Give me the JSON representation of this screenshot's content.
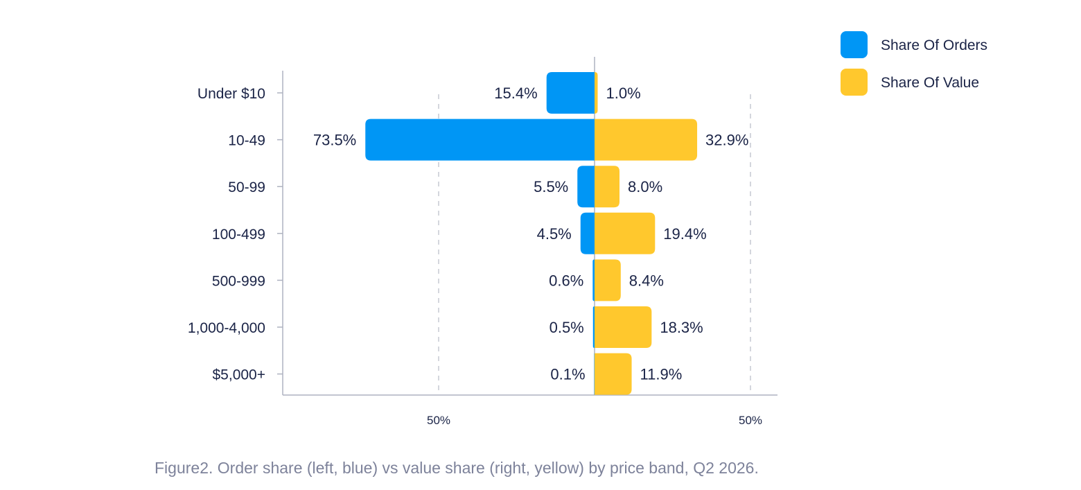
{
  "chart_data": {
    "type": "bar",
    "orientation": "horizontal-diverging",
    "categories": [
      "Under $10",
      "10-49",
      "50-99",
      "100-499",
      "500-999",
      "1,000-4,000",
      "$5,000+"
    ],
    "series": [
      {
        "name": "Share Of Orders",
        "side": "left",
        "color": "#0096f5",
        "values": [
          15.4,
          73.5,
          5.5,
          4.5,
          0.6,
          0.5,
          0.1
        ],
        "labels": [
          "15.4%",
          "73.5%",
          "5.5%",
          "4.5%",
          "0.6%",
          "0.5%",
          "0.1%"
        ]
      },
      {
        "name": "Share Of Value",
        "side": "right",
        "color": "#ffc82d",
        "values": [
          1.0,
          32.9,
          8.0,
          19.4,
          8.4,
          18.3,
          11.9
        ],
        "labels": [
          "1.0%",
          "32.9%",
          "8.0%",
          "19.4%",
          "8.4%",
          "18.3%",
          "11.9%"
        ]
      }
    ],
    "xticks": [
      "50%",
      "50%"
    ],
    "xtick_values": [
      -50,
      50
    ],
    "xlim": [
      -50,
      50
    ],
    "grid": "dashed vertical at ticks",
    "legend_position": "top-right"
  },
  "caption": "Figure2. Order share (left, blue) vs value share (right, yellow) by price band, Q2 2026."
}
